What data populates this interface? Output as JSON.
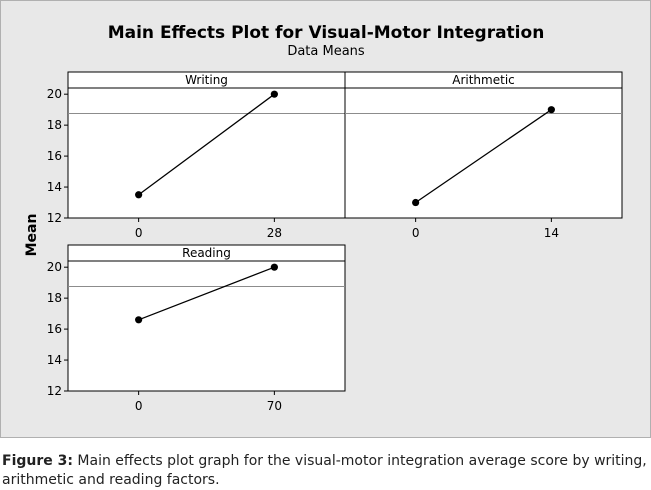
{
  "chart_data": {
    "type": "line",
    "title": "Main Effects Plot for Visual-Motor Integration",
    "subtitle": "Data Means",
    "ylabel": "Mean",
    "ylim": [
      12,
      20.4
    ],
    "y_ticks": [
      12,
      14,
      16,
      18,
      20
    ],
    "reference_line": 18.75,
    "panels": [
      {
        "name": "Writing",
        "categories": [
          "0",
          "28"
        ],
        "values": [
          13.5,
          20.0
        ]
      },
      {
        "name": "Arithmetic",
        "categories": [
          "0",
          "14"
        ],
        "values": [
          13.0,
          19.0
        ]
      },
      {
        "name": "Reading",
        "categories": [
          "0",
          "70"
        ],
        "values": [
          16.6,
          20.0
        ]
      }
    ],
    "colors": {
      "line": "#000000",
      "reference": "#8c8c8c",
      "panel_bg": "#ffffff",
      "figure_bg": "#e8e8e8"
    }
  },
  "caption": {
    "label": "Figure 3:",
    "text": " Main effects plot graph for the visual-motor integration average score by writing, arithmetic and reading factors."
  }
}
